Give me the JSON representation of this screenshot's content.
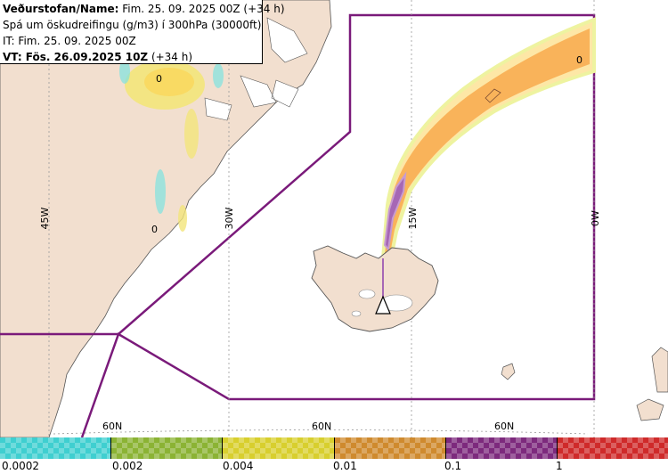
{
  "info": {
    "line1_label": "Veðurstofan/Name:",
    "line1_value": " Fim. 25. 09. 2025 00Z (+34 h)",
    "line2": "Spá um öskudreifingu (g/m3) í 300hPa (30000ft)",
    "line3": "IT: Fim. 25. 09. 2025 00Z",
    "line4_label": "VT: Fös. 26.09.2025 10Z",
    "line4_value": " (+34 h)"
  },
  "map": {
    "lon_labels": [
      "45W",
      "30W",
      "15W",
      "0W"
    ],
    "lat_labels": [
      "60N",
      "60N",
      "60N"
    ],
    "contour_labels": [
      "0",
      "0",
      "0"
    ],
    "colors": {
      "land": "#f2dfcf",
      "boundary": "#7a1a7a",
      "plume_orange": "#f9b35a",
      "plume_light": "#fde7a6",
      "plume_purple": "#a667b5",
      "scatter_yellow": "#f3e57a",
      "scatter_cyan": "#7fe3e0"
    }
  },
  "legend": {
    "tick_labels": [
      "0.0002",
      "0.002",
      "0.004",
      "0.01",
      "0.1",
      "1"
    ],
    "colors": [
      "#3fcfd0",
      "#8bb334",
      "#d8cf2e",
      "#cf8a2e",
      "#7d2a7d",
      "#cf2a2a"
    ]
  }
}
